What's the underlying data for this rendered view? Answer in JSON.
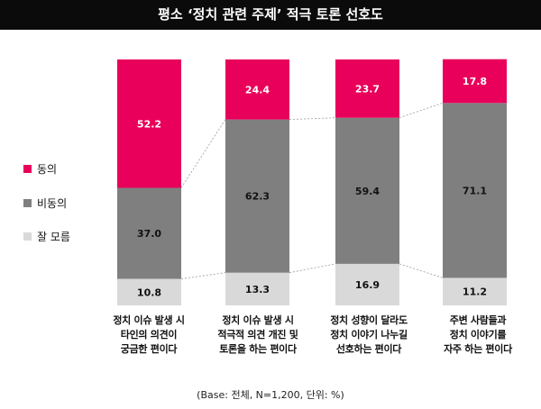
{
  "chart_data": {
    "type": "bar",
    "title": "평소 ‘정치 관련 주제’ 적극 토론 선호도",
    "categories": [
      [
        "정치 이슈 발생 시",
        "타인의 의견이",
        "궁금한 편이다"
      ],
      [
        "정치 이슈 발생 시",
        "적극적 의견 개진 및",
        "토론을 하는 편이다"
      ],
      [
        "정치 성향이 달라도",
        "정치 이야기 나누길",
        "선호하는 편이다"
      ],
      [
        "주변 사람들과",
        "정치 이야기를",
        "자주 하는 편이다"
      ]
    ],
    "series": [
      {
        "name": "잘 모름",
        "color": "#d9d9d9",
        "values": [
          10.8,
          13.3,
          16.9,
          11.2
        ],
        "labels": [
          "10.8",
          "13.3",
          "16.9",
          "11.2"
        ]
      },
      {
        "name": "비동의",
        "color": "#7f7f7f",
        "values": [
          37.0,
          62.3,
          59.4,
          71.1
        ],
        "labels": [
          "37.0",
          "62.3",
          "59.4",
          "71.1"
        ]
      },
      {
        "name": "동의",
        "color": "#e8005a",
        "values": [
          52.2,
          24.4,
          23.7,
          17.8
        ],
        "labels": [
          "52.2",
          "24.4",
          "23.7",
          "17.8"
        ]
      }
    ],
    "stacked": true,
    "ylim": [
      0,
      100
    ],
    "legend_position": "left",
    "legend_order": [
      "동의",
      "비동의",
      "잘 모름"
    ],
    "footnote": "(Base: 전체, N=1,200, 단위: %)"
  }
}
